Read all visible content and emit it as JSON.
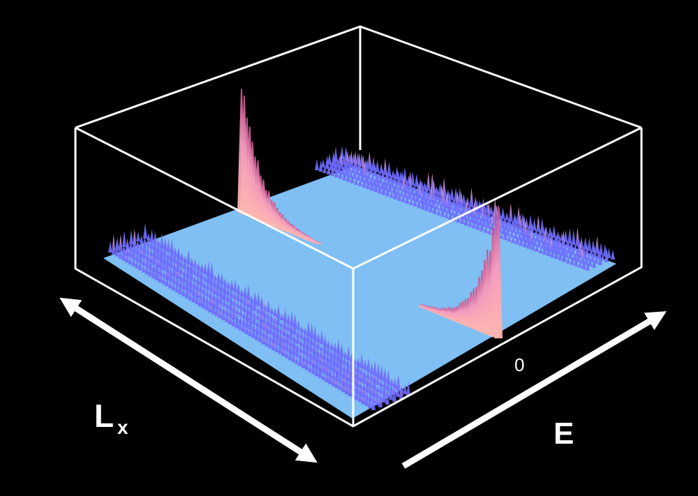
{
  "chart_data": {
    "type": "surface-3d",
    "axes": {
      "lx_axis": {
        "label": "L",
        "subscript": "x"
      },
      "energy_axis": {
        "label": "E",
        "tick": "0"
      }
    },
    "surface": {
      "plane_color": "#7fbff3",
      "ridge_color": "#6f6dff",
      "peak_color": "#f49bbd",
      "frame_color": "#ffffff"
    },
    "features": [
      {
        "kind": "edge-ridge",
        "edge": "back"
      },
      {
        "kind": "edge-ridge",
        "edge": "front"
      },
      {
        "kind": "peak",
        "location": "back-left",
        "relative_height": 1.0
      },
      {
        "kind": "peak",
        "location": "front-right",
        "relative_height": 0.85
      }
    ]
  }
}
